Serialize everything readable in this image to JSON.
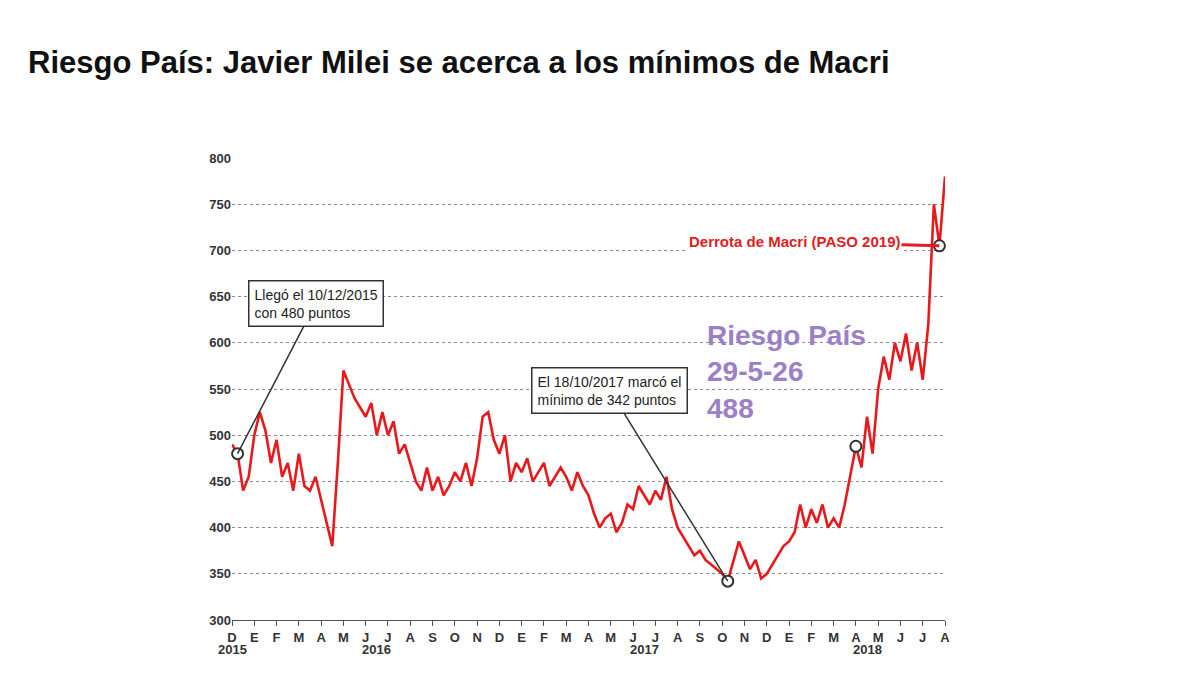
{
  "chart_data": {
    "type": "line",
    "title": "Riesgo País: Javier Milei se acerca a los mínimos de Macri",
    "categories": [
      "D",
      null,
      null,
      null,
      "E",
      null,
      null,
      null,
      "F",
      null,
      null,
      null,
      "M",
      null,
      null,
      null,
      "A",
      null,
      null,
      null,
      "M",
      null,
      null,
      null,
      "J",
      null,
      null,
      null,
      "J",
      null,
      null,
      null,
      "A",
      null,
      null,
      null,
      "S",
      null,
      null,
      null,
      "O",
      null,
      null,
      null,
      "N",
      null,
      null,
      null,
      "D",
      null,
      null,
      null,
      "E",
      null,
      null,
      null,
      "F",
      null,
      null,
      null,
      "M",
      null,
      null,
      null,
      "A",
      null,
      null,
      null,
      "M",
      null,
      null,
      null,
      "J",
      null,
      null,
      null,
      "J",
      null,
      null,
      null,
      "A",
      null,
      null,
      null,
      "S",
      null,
      null,
      null,
      "O",
      null,
      null,
      null,
      "N",
      null,
      null,
      null,
      "D",
      null,
      null,
      null,
      "E",
      null,
      null,
      null,
      "F",
      null,
      null,
      null,
      "M",
      null,
      null,
      null,
      "A",
      null,
      null,
      null,
      "M",
      null,
      null,
      null,
      "J",
      null,
      null,
      null,
      "J",
      null,
      null,
      null,
      "A"
    ],
    "x_groups": [
      {
        "label": "2015",
        "months": 1
      },
      {
        "label": "2016",
        "months": 12
      },
      {
        "label": "2017",
        "months": 12
      },
      {
        "label": "2018",
        "months": 8
      }
    ],
    "values": [
      490,
      480,
      440,
      455,
      500,
      525,
      505,
      470,
      495,
      455,
      470,
      440,
      480,
      445,
      440,
      455,
      430,
      405,
      380,
      470,
      570,
      555,
      540,
      530,
      520,
      535,
      500,
      525,
      500,
      515,
      480,
      490,
      470,
      450,
      440,
      465,
      440,
      455,
      435,
      445,
      460,
      450,
      470,
      445,
      475,
      520,
      525,
      495,
      480,
      500,
      450,
      470,
      460,
      475,
      450,
      460,
      470,
      445,
      455,
      465,
      455,
      440,
      460,
      445,
      435,
      415,
      400,
      410,
      415,
      395,
      405,
      425,
      420,
      445,
      435,
      425,
      440,
      430,
      455,
      420,
      400,
      390,
      380,
      370,
      375,
      365,
      360,
      355,
      350,
      342,
      365,
      385,
      370,
      355,
      365,
      345,
      350,
      360,
      370,
      380,
      385,
      395,
      425,
      400,
      420,
      405,
      425,
      400,
      410,
      400,
      425,
      455,
      488,
      465,
      520,
      480,
      550,
      585,
      560,
      600,
      580,
      610,
      570,
      600,
      560,
      620,
      750,
      705,
      780
    ],
    "color": "#e8191c",
    "ylim": [
      300,
      800
    ],
    "yticks": [
      300,
      350,
      400,
      450,
      500,
      550,
      600,
      650,
      700,
      750,
      800
    ],
    "grid": true,
    "annotations": [
      {
        "text": [
          "Llegó el 10/12/2015",
          "con 480 puntos"
        ],
        "index": 1,
        "color": "#222222"
      },
      {
        "text": [
          "El 18/10/2017 marcó el",
          "mínimo de 342 puntos"
        ],
        "index": 89,
        "color": "#222222"
      },
      {
        "text": [
          "Riesgo País",
          "29-5-26",
          "488"
        ],
        "index": 112,
        "color": "#9b80c8"
      },
      {
        "text": [
          "Derrota de Macri (PASO 2019)"
        ],
        "index": 127,
        "color": "#e31b23"
      }
    ]
  }
}
